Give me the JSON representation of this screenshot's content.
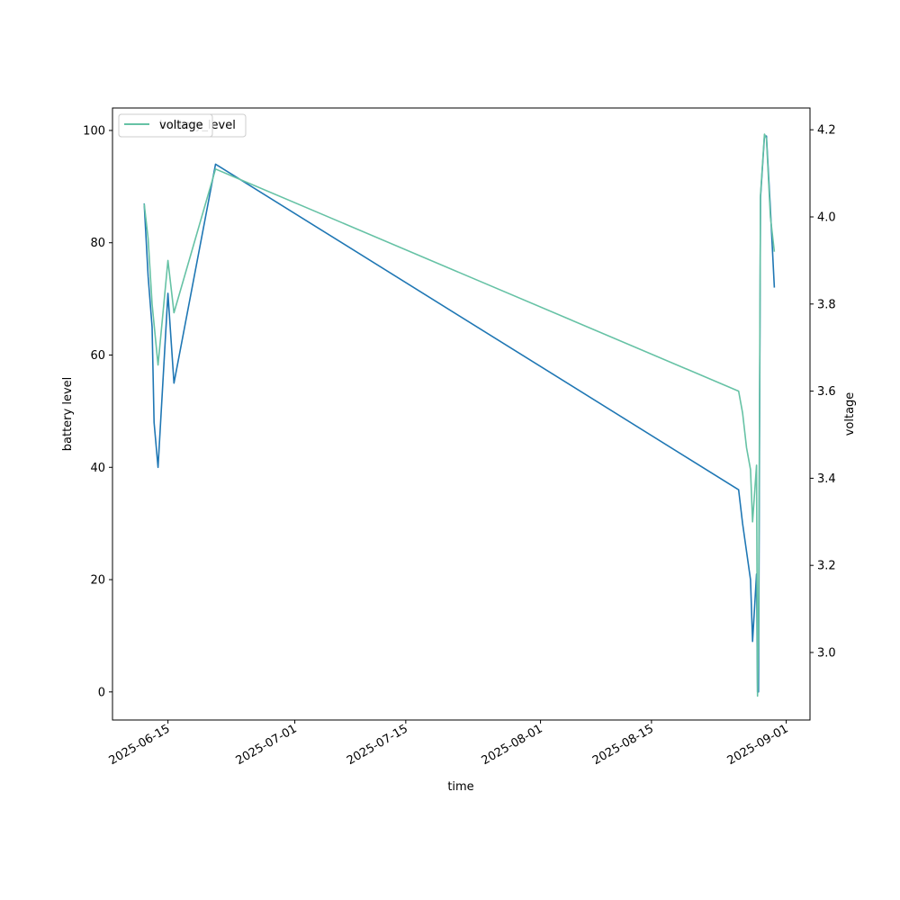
{
  "chart_data": {
    "type": "line",
    "xlabel": "time",
    "ylabel_left": "battery level",
    "ylabel_right": "voltage",
    "x_ticks": [
      "2025-06-15",
      "2025-07-01",
      "2025-07-15",
      "2025-08-01",
      "2025-08-15",
      "2025-09-01"
    ],
    "xlim": [
      "2025-06-08",
      "2025-09-04"
    ],
    "y_left": {
      "lim": [
        -5,
        104
      ],
      "ticks": [
        0,
        20,
        40,
        60,
        80,
        100
      ]
    },
    "y_right": {
      "lim": [
        2.845,
        4.25
      ],
      "ticks": [
        "3.0",
        "3.2",
        "3.4",
        "3.6",
        "3.8",
        "4.0",
        "4.2"
      ]
    },
    "legend_left": {
      "label": "battery_level",
      "placement": "upper-left"
    },
    "legend_right": {
      "label": "voltage",
      "placement": "upper-left"
    },
    "colors": {
      "battery_level": "#1f77b4",
      "voltage": "#66c2a5"
    },
    "series": [
      {
        "name": "battery_level",
        "axis": "left",
        "points": [
          [
            "2025-06-12 00:00",
            87
          ],
          [
            "2025-06-12 12:00",
            74
          ],
          [
            "2025-06-13 00:00",
            65
          ],
          [
            "2025-06-13 06:00",
            48
          ],
          [
            "2025-06-13 18:00",
            40
          ],
          [
            "2025-06-15 00:00",
            71
          ],
          [
            "2025-06-15 18:00",
            55
          ],
          [
            "2025-06-21 00:00",
            94
          ],
          [
            "2025-08-26 00:00",
            36
          ],
          [
            "2025-08-26 12:00",
            30
          ],
          [
            "2025-08-27 00:00",
            25
          ],
          [
            "2025-08-27 12:00",
            20
          ],
          [
            "2025-08-27 18:00",
            9
          ],
          [
            "2025-08-28 06:00",
            21
          ],
          [
            "2025-08-28 09:00",
            0
          ],
          [
            "2025-08-28 12:00",
            0
          ],
          [
            "2025-08-28 18:00",
            88
          ],
          [
            "2025-08-29 06:00",
            99
          ],
          [
            "2025-08-29 12:00",
            99
          ],
          [
            "2025-08-30 00:00",
            86
          ],
          [
            "2025-08-30 12:00",
            72
          ]
        ]
      },
      {
        "name": "voltage",
        "axis": "right",
        "points": [
          [
            "2025-06-12 00:00",
            4.03
          ],
          [
            "2025-06-12 12:00",
            3.95
          ],
          [
            "2025-06-13 00:00",
            3.8
          ],
          [
            "2025-06-13 18:00",
            3.66
          ],
          [
            "2025-06-15 00:00",
            3.9
          ],
          [
            "2025-06-15 18:00",
            3.78
          ],
          [
            "2025-06-21 00:00",
            4.11
          ],
          [
            "2025-08-26 00:00",
            3.6
          ],
          [
            "2025-08-26 12:00",
            3.55
          ],
          [
            "2025-08-27 00:00",
            3.47
          ],
          [
            "2025-08-27 12:00",
            3.42
          ],
          [
            "2025-08-27 18:00",
            3.3
          ],
          [
            "2025-08-28 06:00",
            3.43
          ],
          [
            "2025-08-28 09:00",
            2.9
          ],
          [
            "2025-08-28 12:00",
            3.05
          ],
          [
            "2025-08-28 18:00",
            4.05
          ],
          [
            "2025-08-29 06:00",
            4.19
          ],
          [
            "2025-08-29 12:00",
            4.18
          ],
          [
            "2025-08-30 00:00",
            4.0
          ],
          [
            "2025-08-30 12:00",
            3.92
          ]
        ]
      }
    ]
  }
}
